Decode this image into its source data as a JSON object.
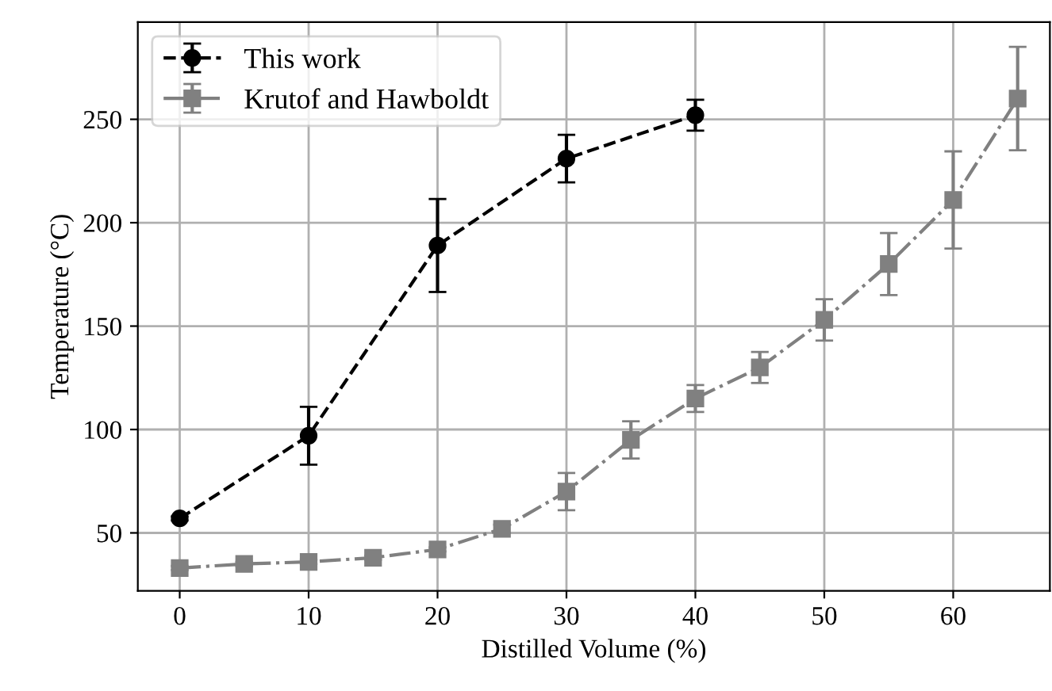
{
  "chart_data": {
    "type": "line",
    "xlabel": "Distilled Volume (%)",
    "ylabel": "Temperature (°C)",
    "xlim": [
      -3.25,
      67.5
    ],
    "ylim": [
      22,
      297
    ],
    "xticks": [
      0,
      10,
      20,
      30,
      40,
      50,
      60
    ],
    "yticks": [
      50,
      100,
      150,
      200,
      250
    ],
    "grid": true,
    "legend": "top left",
    "series": [
      {
        "name": "This work",
        "color": "#000000",
        "marker": "circle",
        "line_style": "dashed",
        "x": [
          0,
          10,
          20,
          30,
          40
        ],
        "values": [
          57,
          97,
          189,
          231,
          252
        ],
        "errors": [
          1,
          14,
          22.5,
          11.5,
          7.5
        ]
      },
      {
        "name": "Krutof and Hawboldt",
        "color": "#808080",
        "marker": "square",
        "line_style": "dashdot",
        "x": [
          0,
          5,
          10,
          15,
          20,
          25,
          30,
          35,
          40,
          45,
          50,
          55,
          60,
          65
        ],
        "values": [
          33,
          35,
          36,
          38,
          42,
          52,
          70,
          95,
          115,
          130,
          153,
          180,
          211,
          260
        ],
        "errors": [
          1,
          1,
          1,
          1,
          1,
          2,
          9,
          9,
          6.5,
          7.5,
          10,
          15,
          23.5,
          25
        ]
      }
    ]
  }
}
